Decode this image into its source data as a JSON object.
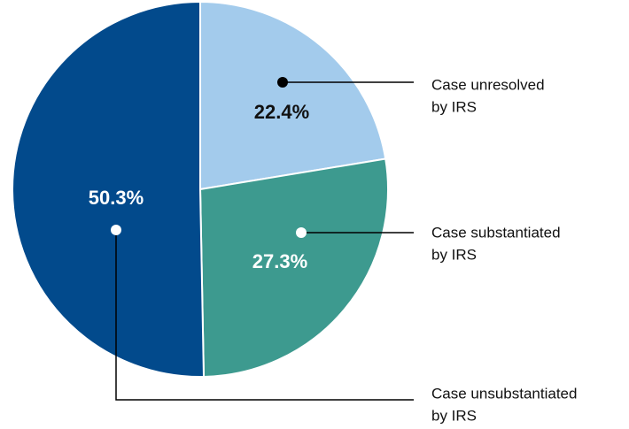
{
  "chart_data": {
    "type": "pie",
    "labels": [
      [
        "Case unresolved",
        "by IRS"
      ],
      [
        "Case substantiated",
        "by IRS"
      ],
      [
        "Case unsubstantiated",
        "by IRS"
      ]
    ],
    "values": [
      22.4,
      27.3,
      50.3
    ],
    "value_labels": [
      "22.4%",
      "27.3%",
      "50.3%"
    ],
    "colors": [
      "#a3cbec",
      "#3d9a8f",
      "#024a8c"
    ]
  }
}
